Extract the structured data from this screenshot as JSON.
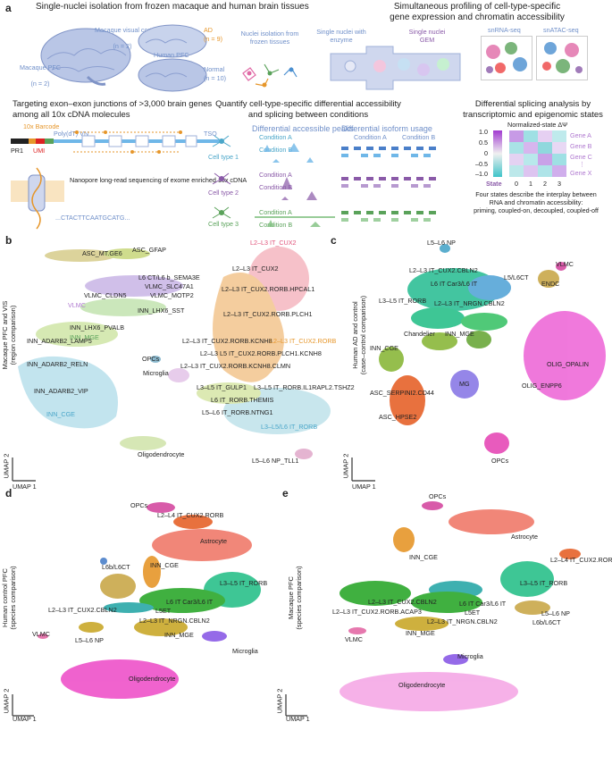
{
  "panel_a": {
    "label": "a",
    "s1_title": "Single-nuclei isolation from frozen macaque and human brain tissues",
    "visual_cortex": "Macaque visual cortex",
    "visual_cortex_n": "(n = 2)",
    "macaque_pfc": "Macaque PFC",
    "macaque_pfc_n": "(n = 2)",
    "ad": "AD",
    "ad_n": "(n = 9)",
    "human_pfc": "Human PFC",
    "normal": "Normal",
    "normal_n": "(n = 10)",
    "nuclei_isolation": "Nuclei isolation from frozen tissues",
    "s2_title_1": "Simultaneous profiling of cell-type-specific",
    "s2_title_2": "gene expression and chromatin accessibility",
    "single_nuclei_enzyme": "Single nuclei with enzyme",
    "single_nuclei_gem": "Single nuclei GEM",
    "snrna": "snRNA-seq",
    "snatac": "snATAC-seq",
    "s3_title_1": "Targeting exon–exon junctions of >3,000 brain genes",
    "s3_title_2": "among all 10x cDNA molecules",
    "barcode": "10x Barcode",
    "umi": "UMI",
    "polydt": "Poly(dT) VN",
    "pr1": "PR1",
    "tso": "TSO",
    "nanopore": "Nanopore long-read sequencing of exome enriched 10x cDNA",
    "seq": "...CTACTTCAATGCATG...",
    "s4_title_1": "Quantify cell-type-specific differential accessibility",
    "s4_title_2": "and splicing between conditions",
    "diff_peaks": "Differential accessible peaks",
    "diff_isoform": "Differential isoform usage",
    "cond_a": "Condition A",
    "cond_b": "Condition B",
    "cell_type_1": "Cell type 1",
    "cell_type_2": "Cell type 2",
    "cell_type_3": "Cell type 3",
    "s5_title_1": "Differential splicing analysis by",
    "s5_title_2": "transcriptomic and epigenomic states",
    "norm_state": "Normalized-state ΔΨ",
    "scale_top": "1.0",
    "scale_half": "0.5",
    "scale_zero": "0",
    "scale_mhalf": "–0.5",
    "scale_bottom": "–1.0",
    "gene_a": "Gene A",
    "gene_b": "Gene B",
    "gene_c": "Gene C",
    "gene_dots": "⋮",
    "gene_x": "Gene X",
    "state_label": "State",
    "state_0": "0",
    "state_1": "1",
    "state_2": "2",
    "state_3": "3",
    "four_states_1": "Four states describe the interplay between",
    "four_states_2": "RNA and chromatin accessibility:",
    "four_states_3": "priming, coupled-on, decoupled, coupled-off",
    "accent_blue": "#6f8fc9",
    "accent_purple": "#8a5aa8",
    "accent_orange": "#e6962a"
  },
  "panel_b": {
    "label": "b",
    "axis_label_1": "Macaque PFC and VIS",
    "axis_label_2": "(region comparison)",
    "umap1": "UMAP 1",
    "umap2": "UMAP 2",
    "clusters": [
      "ASC_MT.GE6",
      "ASC_GFAP",
      "L6 CT/L6 b_SEMA3E",
      "VLMC_SLC47A1",
      "VLMC_CLDN5",
      "VLMC_MOTP2",
      "VLMC",
      "INN_LHX6_SST",
      "INN_LHX6_PVALB",
      "INN_MGE",
      "INN_ADARB2_LAMP5",
      "INN_ADARB2_RELN",
      "OPCs",
      "INN_ADARB2_VIP",
      "Microglia",
      "INN_CGE",
      "Oligodendrocyte",
      "L2–L3 IT_CUX2",
      "L2–L3 IT_CUX2",
      "L2–L3 IT_CUX2.RORB.HPCAL1",
      "L2–L3 IT_CUX2.RORB.PLCH1",
      "L2–L3 IT_CUX2.RORB.KCNH8",
      "L2–L3 IT_CUX2.RORB",
      "L2–L3 L5 IT_CUX2.RORB.PLCH1.KCNH8",
      "L2–L3 IT_CUX2.RORB.KCNH8.CLMN",
      "L3–L5 IT_GULP1",
      "L3–L5 IT_RORB.IL1RAPL2.TSHZ2",
      "L6 IT_RORB.THEMIS",
      "L5–L6 IT_RORB.NTNG1",
      "L3–L5/L6 IT_RORB",
      "L5–L6 NP_TLL1"
    ]
  },
  "panel_c": {
    "label": "c",
    "axis_label_1": "Human AD and control",
    "axis_label_2": "(case–control comparison)",
    "umap1": "UMAP 1",
    "umap2": "UMAP 2",
    "clusters": [
      "L5–L6 NP",
      "VLMC",
      "ENDC",
      "L2–L3 IT_CUX2.CBLN2",
      "L5/L6CT",
      "L6 IT Car3/L6 IT",
      "L3–L5 IT_RORB",
      "L2–L3 IT_NRGN.CBLN2",
      "Chandelier",
      "INN_MGE",
      "INN_CGE",
      "OLIG_OPALIN",
      "OLIG_ENPP6",
      "MG",
      "ASC_SERPINI2.CD44",
      "ASC_HPSE2",
      "OPCs"
    ]
  },
  "panel_d": {
    "label": "d",
    "axis_label_1": "Human control PFC",
    "axis_label_2": "(species comparison)",
    "umap1": "UMAP 1",
    "umap2": "UMAP 2",
    "clusters": [
      "OPCs",
      "L2–L4 IT_CUX2.RORB",
      "Astrocyte",
      "INN_CGE",
      "L6b/L6CT",
      "L3–L5 IT_RORB",
      "L6 IT Car3/L6 IT",
      "L2–L3 IT_CUX2.CBLN2",
      "L5ET",
      "L2–L3 IT_NRGN.CBLN2",
      "VLMC",
      "L5–L6 NP",
      "INN_MGE",
      "Microglia",
      "Oligodendrocyte"
    ]
  },
  "panel_e": {
    "label": "e",
    "axis_label_1": "Macaque PFC",
    "axis_label_2": "(species comparison)",
    "umap1": "UMAP 1",
    "umap2": "UMAP 2",
    "clusters": [
      "OPCs",
      "Astrocyte",
      "INN_CGE",
      "L2–L4 IT_CUX2.RORB",
      "L3–L5 IT_RORB",
      "L2–L3 IT_CUX2.CBLN2",
      "L6 IT Car3/L6 IT",
      "L2–L3 IT_CUX2.RORB.ACAP3",
      "L5ET",
      "L2–L3 IT_NRGN.CBLN2",
      "L5–L6 NP",
      "L6b/L6CT",
      "INN_MGE",
      "VLMC",
      "Microglia",
      "Oligodendrocyte"
    ]
  }
}
